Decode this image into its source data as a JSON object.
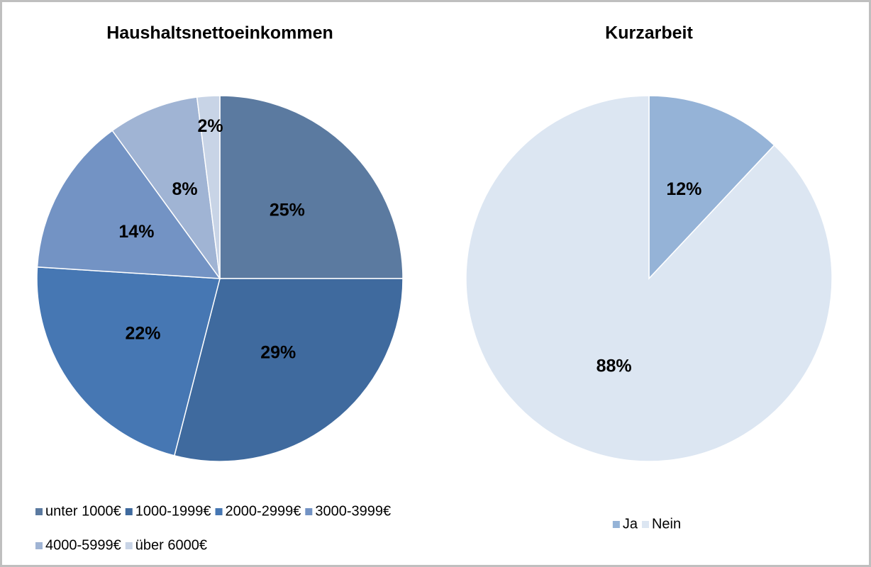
{
  "chart_data": [
    {
      "type": "pie",
      "title": "Haushaltsnettoeinkommen",
      "categories": [
        "unter 1000€",
        "1000-1999€",
        "2000-2999€",
        "3000-3999€",
        "4000-5999€",
        "über 6000€"
      ],
      "values": [
        25,
        29,
        22,
        14,
        8,
        2
      ],
      "value_labels": [
        "25%",
        "29%",
        "22%",
        "14%",
        "8%",
        "2%"
      ],
      "colors": [
        "#5b7aa0",
        "#3f6a9e",
        "#4677b3",
        "#7393c4",
        "#a0b4d4",
        "#c8d4e6"
      ],
      "legend": "bottom"
    },
    {
      "type": "pie",
      "title": "Kurzarbeit",
      "categories": [
        "Ja",
        "Nein"
      ],
      "values": [
        12,
        88
      ],
      "value_labels": [
        "12%",
        "88%"
      ],
      "colors": [
        "#95b3d7",
        "#dce6f2"
      ],
      "legend": "bottom"
    }
  ]
}
